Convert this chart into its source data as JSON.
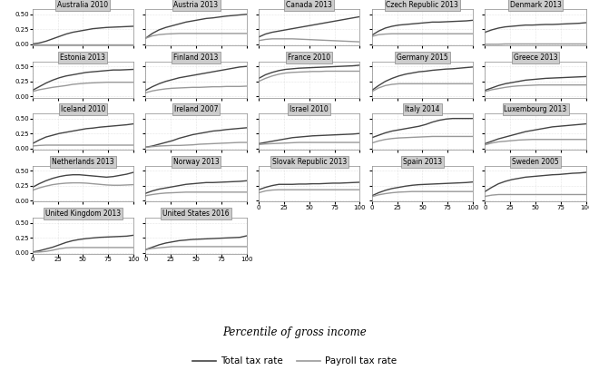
{
  "countries": [
    "Australia 2010",
    "Austria 2013",
    "Canada 2013",
    "Czech Republic 2013",
    "Denmark 2013",
    "Estonia 2013",
    "Finland 2013",
    "France 2010",
    "Germany 2015",
    "Greece 2013",
    "Iceland 2010",
    "Ireland 2007",
    "Israel 2010",
    "Italy 2014",
    "Luxembourg 2013",
    "Netherlands 2013",
    "Norway 2013",
    "Slovak Republic 2013",
    "Spain 2013",
    "Sweden 2005",
    "United Kingdom 2013",
    "United States 2016"
  ],
  "total_tax": {
    "Australia 2010": [
      0.005,
      0.02,
      0.05,
      0.09,
      0.13,
      0.17,
      0.2,
      0.22,
      0.24,
      0.26,
      0.27,
      0.28,
      0.285,
      0.29,
      0.295,
      0.3
    ],
    "Austria 2013": [
      0.1,
      0.18,
      0.24,
      0.28,
      0.31,
      0.34,
      0.37,
      0.39,
      0.41,
      0.43,
      0.44,
      0.455,
      0.47,
      0.48,
      0.49,
      0.5
    ],
    "Canada 2013": [
      0.12,
      0.17,
      0.2,
      0.22,
      0.24,
      0.26,
      0.28,
      0.3,
      0.32,
      0.34,
      0.36,
      0.38,
      0.4,
      0.42,
      0.44,
      0.46
    ],
    "Czech Republic 2013": [
      0.15,
      0.22,
      0.27,
      0.3,
      0.32,
      0.33,
      0.34,
      0.35,
      0.36,
      0.37,
      0.37,
      0.375,
      0.38,
      0.385,
      0.39,
      0.4
    ],
    "Denmark 2013": [
      0.2,
      0.24,
      0.27,
      0.29,
      0.3,
      0.31,
      0.32,
      0.32,
      0.325,
      0.33,
      0.33,
      0.335,
      0.34,
      0.345,
      0.35,
      0.36
    ],
    "Estonia 2013": [
      0.1,
      0.16,
      0.22,
      0.27,
      0.31,
      0.34,
      0.36,
      0.38,
      0.4,
      0.41,
      0.42,
      0.43,
      0.44,
      0.44,
      0.445,
      0.45
    ],
    "Finland 2013": [
      0.1,
      0.16,
      0.21,
      0.25,
      0.28,
      0.31,
      0.33,
      0.35,
      0.37,
      0.39,
      0.41,
      0.43,
      0.45,
      0.47,
      0.49,
      0.5
    ],
    "France 2010": [
      0.3,
      0.36,
      0.4,
      0.43,
      0.45,
      0.46,
      0.47,
      0.475,
      0.48,
      0.485,
      0.49,
      0.495,
      0.5,
      0.505,
      0.51,
      0.52
    ],
    "Germany 2015": [
      0.1,
      0.18,
      0.25,
      0.3,
      0.34,
      0.37,
      0.39,
      0.41,
      0.42,
      0.435,
      0.445,
      0.455,
      0.46,
      0.47,
      0.48,
      0.49
    ],
    "Greece 2013": [
      0.1,
      0.14,
      0.18,
      0.21,
      0.23,
      0.25,
      0.27,
      0.28,
      0.29,
      0.3,
      0.305,
      0.31,
      0.315,
      0.32,
      0.325,
      0.33
    ],
    "Iceland 2010": [
      0.08,
      0.14,
      0.19,
      0.22,
      0.25,
      0.27,
      0.29,
      0.31,
      0.33,
      0.34,
      0.355,
      0.365,
      0.375,
      0.385,
      0.395,
      0.41
    ],
    "Ireland 2007": [
      0.02,
      0.04,
      0.07,
      0.1,
      0.13,
      0.17,
      0.2,
      0.23,
      0.25,
      0.27,
      0.29,
      0.3,
      0.315,
      0.325,
      0.335,
      0.345
    ],
    "Israel 2010": [
      0.08,
      0.1,
      0.12,
      0.14,
      0.16,
      0.18,
      0.19,
      0.2,
      0.21,
      0.215,
      0.22,
      0.225,
      0.23,
      0.235,
      0.24,
      0.25
    ],
    "Italy 2014": [
      0.18,
      0.22,
      0.26,
      0.29,
      0.31,
      0.33,
      0.35,
      0.37,
      0.4,
      0.44,
      0.47,
      0.49,
      0.5,
      0.5,
      0.5,
      0.5
    ],
    "Luxembourg 2013": [
      0.08,
      0.12,
      0.16,
      0.19,
      0.22,
      0.25,
      0.28,
      0.3,
      0.32,
      0.34,
      0.36,
      0.37,
      0.38,
      0.39,
      0.4,
      0.41
    ],
    "Netherlands 2013": [
      0.22,
      0.28,
      0.33,
      0.37,
      0.4,
      0.42,
      0.43,
      0.43,
      0.42,
      0.41,
      0.4,
      0.39,
      0.4,
      0.42,
      0.44,
      0.47
    ],
    "Norway 2013": [
      0.12,
      0.16,
      0.19,
      0.21,
      0.23,
      0.25,
      0.27,
      0.28,
      0.29,
      0.3,
      0.3,
      0.305,
      0.31,
      0.315,
      0.32,
      0.33
    ],
    "Slovak Republic 2013": [
      0.18,
      0.22,
      0.25,
      0.27,
      0.27,
      0.27,
      0.275,
      0.275,
      0.28,
      0.28,
      0.285,
      0.29,
      0.29,
      0.295,
      0.3,
      0.305
    ],
    "Spain 2013": [
      0.08,
      0.13,
      0.17,
      0.2,
      0.22,
      0.24,
      0.255,
      0.265,
      0.27,
      0.275,
      0.28,
      0.285,
      0.29,
      0.295,
      0.3,
      0.31
    ],
    "Sweden 2005": [
      0.15,
      0.22,
      0.28,
      0.32,
      0.35,
      0.37,
      0.39,
      0.4,
      0.41,
      0.42,
      0.43,
      0.435,
      0.445,
      0.455,
      0.46,
      0.47
    ],
    "United Kingdom 2013": [
      0.01,
      0.03,
      0.06,
      0.09,
      0.13,
      0.17,
      0.2,
      0.22,
      0.235,
      0.245,
      0.255,
      0.26,
      0.265,
      0.27,
      0.275,
      0.29
    ],
    "United States 2016": [
      0.05,
      0.09,
      0.13,
      0.16,
      0.18,
      0.2,
      0.21,
      0.22,
      0.225,
      0.23,
      0.235,
      0.24,
      0.245,
      0.25,
      0.255,
      0.28
    ]
  },
  "payroll_tax": {
    "Australia 2010": [
      0.0,
      0.0,
      0.0,
      0.0,
      0.0,
      0.0,
      0.0,
      0.0,
      0.0,
      0.0,
      0.0,
      0.0,
      0.0,
      0.0,
      0.0,
      0.0
    ],
    "Austria 2013": [
      0.1,
      0.14,
      0.16,
      0.17,
      0.175,
      0.18,
      0.18,
      0.18,
      0.18,
      0.18,
      0.18,
      0.18,
      0.18,
      0.18,
      0.18,
      0.18
    ],
    "Canada 2013": [
      0.06,
      0.08,
      0.09,
      0.09,
      0.09,
      0.09,
      0.085,
      0.08,
      0.075,
      0.07,
      0.065,
      0.06,
      0.055,
      0.05,
      0.045,
      0.04
    ],
    "Czech Republic 2013": [
      0.13,
      0.16,
      0.17,
      0.175,
      0.175,
      0.175,
      0.175,
      0.175,
      0.175,
      0.175,
      0.175,
      0.175,
      0.175,
      0.175,
      0.175,
      0.175
    ],
    "Denmark 2013": [
      0.0,
      0.0,
      0.0,
      0.005,
      0.005,
      0.005,
      0.005,
      0.005,
      0.005,
      0.005,
      0.005,
      0.005,
      0.005,
      0.005,
      0.005,
      0.005
    ],
    "Estonia 2013": [
      0.08,
      0.11,
      0.13,
      0.15,
      0.165,
      0.18,
      0.2,
      0.21,
      0.22,
      0.225,
      0.23,
      0.235,
      0.235,
      0.235,
      0.235,
      0.235
    ],
    "Finland 2013": [
      0.06,
      0.09,
      0.11,
      0.125,
      0.135,
      0.14,
      0.145,
      0.15,
      0.15,
      0.155,
      0.16,
      0.16,
      0.165,
      0.165,
      0.165,
      0.17
    ],
    "France 2010": [
      0.25,
      0.3,
      0.34,
      0.37,
      0.39,
      0.4,
      0.405,
      0.41,
      0.415,
      0.415,
      0.42,
      0.42,
      0.42,
      0.42,
      0.42,
      0.42
    ],
    "Germany 2015": [
      0.08,
      0.14,
      0.18,
      0.2,
      0.21,
      0.21,
      0.21,
      0.21,
      0.21,
      0.21,
      0.21,
      0.21,
      0.21,
      0.21,
      0.21,
      0.21
    ],
    "Greece 2013": [
      0.08,
      0.11,
      0.13,
      0.15,
      0.165,
      0.175,
      0.18,
      0.185,
      0.19,
      0.19,
      0.19,
      0.19,
      0.19,
      0.19,
      0.19,
      0.19
    ],
    "Iceland 2010": [
      0.04,
      0.05,
      0.055,
      0.055,
      0.055,
      0.055,
      0.055,
      0.055,
      0.055,
      0.055,
      0.055,
      0.055,
      0.055,
      0.055,
      0.055,
      0.055
    ],
    "Ireland 2007": [
      0.02,
      0.03,
      0.04,
      0.045,
      0.05,
      0.05,
      0.055,
      0.06,
      0.07,
      0.075,
      0.08,
      0.085,
      0.09,
      0.095,
      0.1,
      0.1
    ],
    "Israel 2010": [
      0.065,
      0.075,
      0.08,
      0.085,
      0.09,
      0.095,
      0.1,
      0.1,
      0.1,
      0.1,
      0.1,
      0.1,
      0.1,
      0.1,
      0.1,
      0.1
    ],
    "Italy 2014": [
      0.09,
      0.125,
      0.15,
      0.165,
      0.175,
      0.18,
      0.185,
      0.19,
      0.195,
      0.2,
      0.2,
      0.2,
      0.2,
      0.2,
      0.2,
      0.2
    ],
    "Luxembourg 2013": [
      0.06,
      0.09,
      0.11,
      0.12,
      0.13,
      0.14,
      0.145,
      0.15,
      0.15,
      0.15,
      0.15,
      0.15,
      0.15,
      0.15,
      0.15,
      0.15
    ],
    "Netherlands 2013": [
      0.17,
      0.21,
      0.24,
      0.265,
      0.28,
      0.29,
      0.295,
      0.295,
      0.29,
      0.28,
      0.27,
      0.26,
      0.255,
      0.255,
      0.26,
      0.265
    ],
    "Norway 2013": [
      0.08,
      0.1,
      0.115,
      0.125,
      0.13,
      0.135,
      0.14,
      0.14,
      0.14,
      0.14,
      0.14,
      0.14,
      0.14,
      0.14,
      0.14,
      0.14
    ],
    "Slovak Republic 2013": [
      0.13,
      0.16,
      0.175,
      0.18,
      0.18,
      0.18,
      0.18,
      0.18,
      0.18,
      0.18,
      0.18,
      0.18,
      0.18,
      0.18,
      0.18,
      0.18
    ],
    "Spain 2013": [
      0.065,
      0.095,
      0.115,
      0.13,
      0.14,
      0.145,
      0.15,
      0.15,
      0.15,
      0.15,
      0.15,
      0.15,
      0.15,
      0.15,
      0.15,
      0.15
    ],
    "Sweden 2005": [
      0.07,
      0.09,
      0.1,
      0.1,
      0.1,
      0.1,
      0.1,
      0.1,
      0.1,
      0.1,
      0.1,
      0.1,
      0.1,
      0.1,
      0.1,
      0.1
    ],
    "United Kingdom 2013": [
      0.005,
      0.01,
      0.02,
      0.04,
      0.065,
      0.08,
      0.085,
      0.085,
      0.085,
      0.085,
      0.085,
      0.085,
      0.085,
      0.085,
      0.085,
      0.085
    ],
    "United States 2016": [
      0.05,
      0.07,
      0.08,
      0.09,
      0.1,
      0.1,
      0.1,
      0.1,
      0.1,
      0.1,
      0.1,
      0.1,
      0.1,
      0.1,
      0.1,
      0.1
    ]
  },
  "x_ticks": [
    0,
    25,
    50,
    75,
    100
  ],
  "y_ticks": [
    0.0,
    0.25,
    0.5
  ],
  "ylim": [
    -0.02,
    0.58
  ],
  "xlim": [
    0,
    100
  ],
  "total_color": "#444444",
  "payroll_color": "#999999",
  "total_lw": 1.0,
  "payroll_lw": 1.0,
  "title_fontsize": 5.5,
  "tick_fontsize": 5.0,
  "xlabel": "Percentile of gross income",
  "legend_total": "Total tax rate",
  "legend_payroll": "Payroll tax rate",
  "header_bg": "#cccccc",
  "ncols": 5
}
